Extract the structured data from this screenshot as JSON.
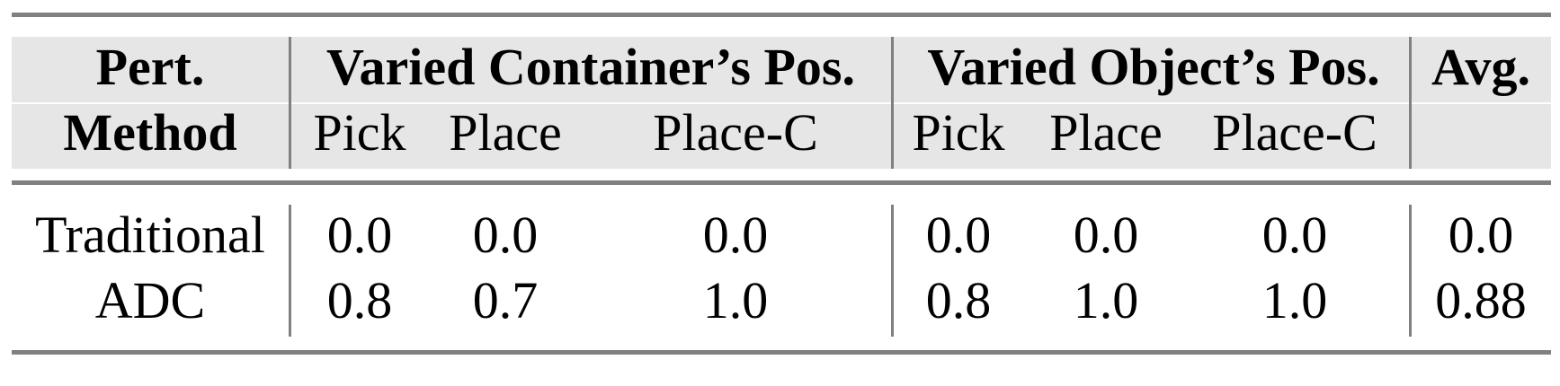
{
  "header": {
    "method_line1": "Pert.",
    "method_line2": "Method",
    "group1": "Varied Container’s Pos.",
    "group2": "Varied Object’s Pos.",
    "avg": "Avg.",
    "sub": [
      "Pick",
      "Place",
      "Place-C",
      "Pick",
      "Place",
      "Place-C"
    ]
  },
  "rows": [
    {
      "method": "Traditional",
      "values": [
        "0.0",
        "0.0",
        "0.0",
        "0.0",
        "0.0",
        "0.0"
      ],
      "avg": "0.0"
    },
    {
      "method": "ADC",
      "values": [
        "0.8",
        "0.7",
        "1.0",
        "0.8",
        "1.0",
        "1.0"
      ],
      "avg": "0.88"
    }
  ]
}
